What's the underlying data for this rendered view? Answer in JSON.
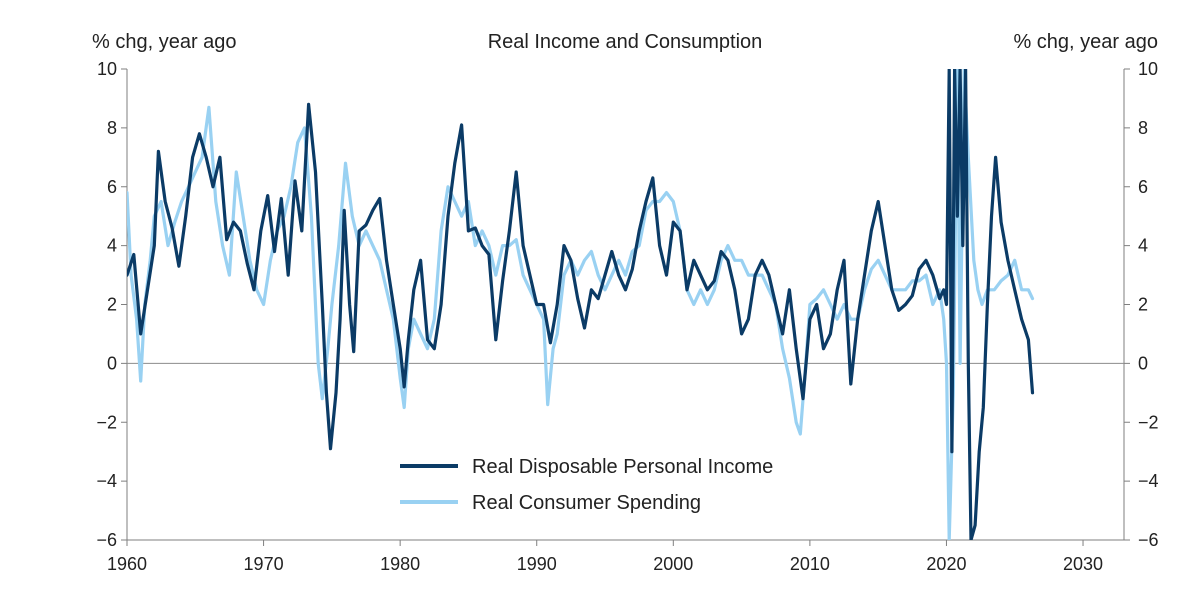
{
  "chart_data": {
    "type": "line",
    "title": "Real Income and Consumption",
    "ylabel_left": "% chg, year ago",
    "ylabel_right": "% chg, year ago",
    "xlim": [
      1960,
      2033
    ],
    "ylim": [
      -6,
      10
    ],
    "x_ticks": [
      1960,
      1970,
      1980,
      1990,
      2000,
      2010,
      2020,
      2030
    ],
    "y_ticks": [
      -6,
      -4,
      -2,
      0,
      2,
      4,
      6,
      8,
      10
    ],
    "legend_position": "bottom-center",
    "grid": false,
    "series": [
      {
        "name": "Real Disposable Personal Income",
        "color": "#0b3b66",
        "points": [
          [
            1960.0,
            3.0
          ],
          [
            1960.5,
            3.7
          ],
          [
            1961.0,
            1.0
          ],
          [
            1961.5,
            2.5
          ],
          [
            1962.0,
            4.0
          ],
          [
            1962.3,
            7.2
          ],
          [
            1962.8,
            5.5
          ],
          [
            1963.3,
            4.6
          ],
          [
            1963.8,
            3.3
          ],
          [
            1964.3,
            5.0
          ],
          [
            1964.8,
            7.0
          ],
          [
            1965.3,
            7.8
          ],
          [
            1965.8,
            7.0
          ],
          [
            1966.3,
            6.0
          ],
          [
            1966.8,
            7.0
          ],
          [
            1967.3,
            4.2
          ],
          [
            1967.8,
            4.8
          ],
          [
            1968.3,
            4.5
          ],
          [
            1968.8,
            3.4
          ],
          [
            1969.3,
            2.5
          ],
          [
            1969.8,
            4.5
          ],
          [
            1970.3,
            5.7
          ],
          [
            1970.8,
            3.8
          ],
          [
            1971.3,
            5.6
          ],
          [
            1971.8,
            3.0
          ],
          [
            1972.3,
            6.2
          ],
          [
            1972.8,
            4.5
          ],
          [
            1973.3,
            8.8
          ],
          [
            1973.8,
            6.5
          ],
          [
            1974.3,
            2.0
          ],
          [
            1974.6,
            -1.0
          ],
          [
            1974.9,
            -2.9
          ],
          [
            1975.3,
            -1.0
          ],
          [
            1975.6,
            1.5
          ],
          [
            1975.9,
            5.2
          ],
          [
            1976.3,
            2.0
          ],
          [
            1976.6,
            0.4
          ],
          [
            1977.0,
            4.5
          ],
          [
            1977.5,
            4.7
          ],
          [
            1978.0,
            5.2
          ],
          [
            1978.5,
            5.6
          ],
          [
            1979.0,
            3.5
          ],
          [
            1979.5,
            2.0
          ],
          [
            1980.0,
            0.5
          ],
          [
            1980.3,
            -0.8
          ],
          [
            1980.6,
            0.8
          ],
          [
            1981.0,
            2.5
          ],
          [
            1981.5,
            3.5
          ],
          [
            1982.0,
            0.8
          ],
          [
            1982.5,
            0.5
          ],
          [
            1983.0,
            2.0
          ],
          [
            1983.5,
            5.0
          ],
          [
            1984.0,
            6.8
          ],
          [
            1984.5,
            8.1
          ],
          [
            1985.0,
            4.5
          ],
          [
            1985.5,
            4.6
          ],
          [
            1986.0,
            4.0
          ],
          [
            1986.5,
            3.7
          ],
          [
            1987.0,
            0.8
          ],
          [
            1987.5,
            2.8
          ],
          [
            1988.0,
            4.5
          ],
          [
            1988.5,
            6.5
          ],
          [
            1989.0,
            4.0
          ],
          [
            1989.5,
            3.0
          ],
          [
            1990.0,
            2.0
          ],
          [
            1990.5,
            2.0
          ],
          [
            1991.0,
            0.7
          ],
          [
            1991.5,
            2.0
          ],
          [
            1992.0,
            4.0
          ],
          [
            1992.5,
            3.5
          ],
          [
            1993.0,
            2.2
          ],
          [
            1993.5,
            1.2
          ],
          [
            1994.0,
            2.5
          ],
          [
            1994.5,
            2.2
          ],
          [
            1995.0,
            3.0
          ],
          [
            1995.5,
            3.8
          ],
          [
            1996.0,
            3.0
          ],
          [
            1996.5,
            2.5
          ],
          [
            1997.0,
            3.2
          ],
          [
            1997.5,
            4.5
          ],
          [
            1998.0,
            5.5
          ],
          [
            1998.5,
            6.3
          ],
          [
            1999.0,
            4.0
          ],
          [
            1999.5,
            3.0
          ],
          [
            2000.0,
            4.8
          ],
          [
            2000.5,
            4.5
          ],
          [
            2001.0,
            2.5
          ],
          [
            2001.5,
            3.5
          ],
          [
            2002.0,
            3.0
          ],
          [
            2002.5,
            2.5
          ],
          [
            2003.0,
            2.8
          ],
          [
            2003.5,
            3.8
          ],
          [
            2004.0,
            3.5
          ],
          [
            2004.5,
            2.5
          ],
          [
            2005.0,
            1.0
          ],
          [
            2005.5,
            1.5
          ],
          [
            2006.0,
            3.0
          ],
          [
            2006.5,
            3.5
          ],
          [
            2007.0,
            3.0
          ],
          [
            2007.5,
            2.0
          ],
          [
            2008.0,
            1.0
          ],
          [
            2008.5,
            2.5
          ],
          [
            2009.0,
            0.5
          ],
          [
            2009.5,
            -1.2
          ],
          [
            2010.0,
            1.5
          ],
          [
            2010.5,
            2.0
          ],
          [
            2011.0,
            0.5
          ],
          [
            2011.5,
            1.0
          ],
          [
            2012.0,
            2.5
          ],
          [
            2012.5,
            3.5
          ],
          [
            2013.0,
            -0.7
          ],
          [
            2013.5,
            1.5
          ],
          [
            2014.0,
            3.0
          ],
          [
            2014.5,
            4.5
          ],
          [
            2015.0,
            5.5
          ],
          [
            2015.5,
            4.0
          ],
          [
            2016.0,
            2.5
          ],
          [
            2016.5,
            1.8
          ],
          [
            2017.0,
            2.0
          ],
          [
            2017.5,
            2.3
          ],
          [
            2018.0,
            3.2
          ],
          [
            2018.5,
            3.5
          ],
          [
            2019.0,
            3.0
          ],
          [
            2019.5,
            2.2
          ],
          [
            2019.8,
            2.5
          ],
          [
            2020.0,
            2.0
          ],
          [
            2020.2,
            10.0
          ],
          [
            2020.4,
            -3.0
          ],
          [
            2020.6,
            10.0
          ],
          [
            2020.8,
            5.0
          ],
          [
            2021.0,
            10.0
          ],
          [
            2021.2,
            4.0
          ],
          [
            2021.4,
            10.0
          ],
          [
            2021.6,
            0.0
          ],
          [
            2021.8,
            -6.0
          ],
          [
            2022.1,
            -5.5
          ],
          [
            2022.4,
            -3.0
          ],
          [
            2022.7,
            -1.5
          ],
          [
            2023.0,
            2.0
          ],
          [
            2023.3,
            5.0
          ],
          [
            2023.6,
            7.0
          ],
          [
            2024.0,
            4.8
          ],
          [
            2024.5,
            3.5
          ],
          [
            2025.0,
            2.5
          ],
          [
            2025.5,
            1.5
          ],
          [
            2026.0,
            0.8
          ],
          [
            2026.3,
            -1.0
          ]
        ]
      },
      {
        "name": "Real Consumer Spending",
        "color": "#99d1f2",
        "points": [
          [
            1960.0,
            5.8
          ],
          [
            1960.3,
            3.0
          ],
          [
            1960.7,
            1.5
          ],
          [
            1961.0,
            -0.6
          ],
          [
            1961.3,
            2.0
          ],
          [
            1961.7,
            3.5
          ],
          [
            1962.0,
            5.0
          ],
          [
            1962.5,
            5.5
          ],
          [
            1963.0,
            4.0
          ],
          [
            1963.5,
            4.8
          ],
          [
            1964.0,
            5.5
          ],
          [
            1964.5,
            6.0
          ],
          [
            1965.0,
            6.5
          ],
          [
            1965.5,
            7.0
          ],
          [
            1966.0,
            8.7
          ],
          [
            1966.5,
            5.5
          ],
          [
            1967.0,
            4.0
          ],
          [
            1967.5,
            3.0
          ],
          [
            1968.0,
            6.5
          ],
          [
            1968.5,
            5.0
          ],
          [
            1969.0,
            3.5
          ],
          [
            1969.5,
            2.5
          ],
          [
            1970.0,
            2.0
          ],
          [
            1970.5,
            3.5
          ],
          [
            1971.0,
            4.5
          ],
          [
            1971.5,
            5.0
          ],
          [
            1972.0,
            6.0
          ],
          [
            1972.5,
            7.5
          ],
          [
            1973.0,
            8.0
          ],
          [
            1973.5,
            5.0
          ],
          [
            1974.0,
            0.0
          ],
          [
            1974.3,
            -1.2
          ],
          [
            1974.7,
            0.5
          ],
          [
            1975.0,
            2.0
          ],
          [
            1975.5,
            4.0
          ],
          [
            1976.0,
            6.8
          ],
          [
            1976.5,
            5.0
          ],
          [
            1977.0,
            4.0
          ],
          [
            1977.5,
            4.5
          ],
          [
            1978.0,
            4.0
          ],
          [
            1978.5,
            3.5
          ],
          [
            1979.0,
            2.5
          ],
          [
            1979.5,
            1.5
          ],
          [
            1980.0,
            -0.5
          ],
          [
            1980.3,
            -1.5
          ],
          [
            1980.6,
            0.5
          ],
          [
            1981.0,
            1.5
          ],
          [
            1981.5,
            1.0
          ],
          [
            1982.0,
            0.5
          ],
          [
            1982.5,
            1.5
          ],
          [
            1983.0,
            4.5
          ],
          [
            1983.5,
            6.0
          ],
          [
            1984.0,
            5.5
          ],
          [
            1984.5,
            5.0
          ],
          [
            1985.0,
            5.5
          ],
          [
            1985.5,
            4.0
          ],
          [
            1986.0,
            4.5
          ],
          [
            1986.5,
            4.0
          ],
          [
            1987.0,
            3.0
          ],
          [
            1987.5,
            4.0
          ],
          [
            1988.0,
            4.0
          ],
          [
            1988.5,
            4.2
          ],
          [
            1989.0,
            3.0
          ],
          [
            1989.5,
            2.5
          ],
          [
            1990.0,
            2.0
          ],
          [
            1990.5,
            1.5
          ],
          [
            1990.8,
            -1.4
          ],
          [
            1991.2,
            0.5
          ],
          [
            1991.5,
            1.0
          ],
          [
            1992.0,
            3.0
          ],
          [
            1992.5,
            3.5
          ],
          [
            1993.0,
            3.0
          ],
          [
            1993.5,
            3.5
          ],
          [
            1994.0,
            3.8
          ],
          [
            1994.5,
            3.0
          ],
          [
            1995.0,
            2.5
          ],
          [
            1995.5,
            3.0
          ],
          [
            1996.0,
            3.5
          ],
          [
            1996.5,
            3.0
          ],
          [
            1997.0,
            3.8
          ],
          [
            1997.5,
            4.0
          ],
          [
            1998.0,
            5.2
          ],
          [
            1998.5,
            5.5
          ],
          [
            1999.0,
            5.5
          ],
          [
            1999.5,
            5.8
          ],
          [
            2000.0,
            5.5
          ],
          [
            2000.5,
            4.5
          ],
          [
            2001.0,
            2.5
          ],
          [
            2001.5,
            2.0
          ],
          [
            2002.0,
            2.5
          ],
          [
            2002.5,
            2.0
          ],
          [
            2003.0,
            2.5
          ],
          [
            2003.5,
            3.5
          ],
          [
            2004.0,
            4.0
          ],
          [
            2004.5,
            3.5
          ],
          [
            2005.0,
            3.5
          ],
          [
            2005.5,
            3.0
          ],
          [
            2006.0,
            3.0
          ],
          [
            2006.5,
            3.0
          ],
          [
            2007.0,
            2.5
          ],
          [
            2007.5,
            2.0
          ],
          [
            2008.0,
            0.5
          ],
          [
            2008.5,
            -0.5
          ],
          [
            2009.0,
            -2.0
          ],
          [
            2009.3,
            -2.4
          ],
          [
            2009.7,
            0.0
          ],
          [
            2010.0,
            2.0
          ],
          [
            2010.5,
            2.2
          ],
          [
            2011.0,
            2.5
          ],
          [
            2011.5,
            2.0
          ],
          [
            2012.0,
            1.5
          ],
          [
            2012.5,
            2.0
          ],
          [
            2013.0,
            1.5
          ],
          [
            2013.5,
            1.5
          ],
          [
            2014.0,
            2.5
          ],
          [
            2014.5,
            3.2
          ],
          [
            2015.0,
            3.5
          ],
          [
            2015.5,
            3.0
          ],
          [
            2016.0,
            2.5
          ],
          [
            2016.5,
            2.5
          ],
          [
            2017.0,
            2.5
          ],
          [
            2017.5,
            2.8
          ],
          [
            2018.0,
            2.8
          ],
          [
            2018.5,
            3.0
          ],
          [
            2019.0,
            2.0
          ],
          [
            2019.5,
            2.5
          ],
          [
            2019.8,
            1.5
          ],
          [
            2020.0,
            0.0
          ],
          [
            2020.2,
            -6.0
          ],
          [
            2020.5,
            -1.0
          ],
          [
            2020.8,
            10.0
          ],
          [
            2021.0,
            0.0
          ],
          [
            2021.3,
            10.0
          ],
          [
            2021.6,
            7.0
          ],
          [
            2022.0,
            3.5
          ],
          [
            2022.3,
            2.5
          ],
          [
            2022.6,
            2.0
          ],
          [
            2023.0,
            2.5
          ],
          [
            2023.5,
            2.5
          ],
          [
            2024.0,
            2.8
          ],
          [
            2024.5,
            3.0
          ],
          [
            2025.0,
            3.5
          ],
          [
            2025.5,
            2.5
          ],
          [
            2026.0,
            2.5
          ],
          [
            2026.3,
            2.2
          ]
        ]
      }
    ]
  }
}
